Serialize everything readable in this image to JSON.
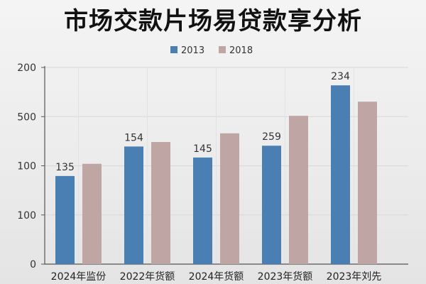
{
  "chart_data": {
    "type": "bar",
    "title": "市场交款片场易贷款享分析",
    "categories": [
      "2024年监份",
      "2022年货额",
      "2024年货额",
      "2023年货额",
      "2023年刘先"
    ],
    "series": [
      {
        "name": "2013",
        "color": "#4a7fb3",
        "values": [
          135,
          154,
          145,
          259,
          234
        ]
      },
      {
        "name": "2018",
        "color": "#bfa6a4",
        "values": [
          null,
          null,
          null,
          null,
          null
        ]
      }
    ],
    "tick_labels": [
      "0",
      "100",
      "100",
      "500",
      "200"
    ],
    "data_labels": [
      "135",
      "154",
      "145",
      "259",
      "234"
    ],
    "bar_fraction_of_axis": {
      "2013": [
        0.448,
        0.598,
        0.542,
        0.602,
        0.909
      ],
      "2018": [
        0.51,
        0.621,
        0.665,
        0.754,
        0.826
      ]
    },
    "legend_position": "top-center",
    "grid": true,
    "xlabel": "",
    "ylabel": ""
  }
}
